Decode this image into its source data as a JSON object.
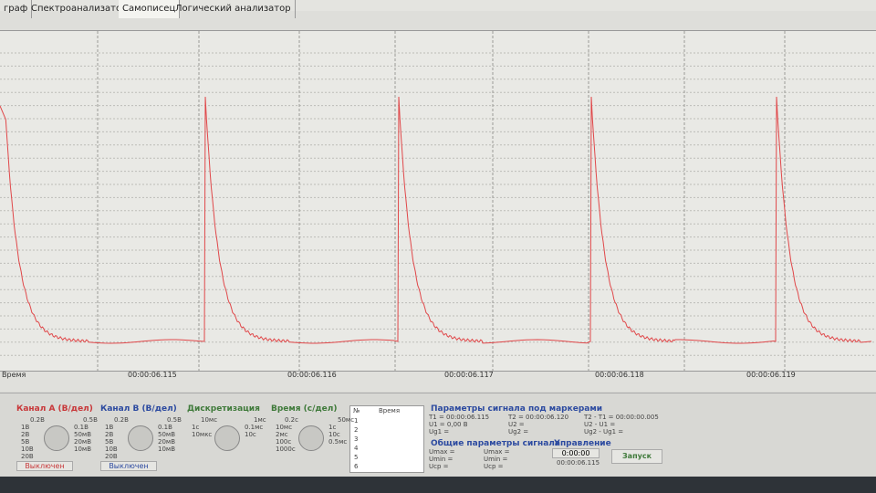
{
  "tabs": [
    "граф",
    "Спектроанализатор",
    "Самописец",
    "Логический анализатор"
  ],
  "time_axis": {
    "label": "Время",
    "ticks": [
      "00:00:06.115",
      "00:00:06.116",
      "00:00:06.117",
      "00:00:06.118",
      "00:00:06.119"
    ]
  },
  "channel_a": {
    "title": "Канал А (В/дел)",
    "scale": [
      "0.2В",
      "0.5В",
      "1В",
      "0.1В",
      "2В",
      "50мВ",
      "5В",
      "20мВ",
      "10В",
      "10мВ",
      "20В"
    ],
    "state": "Выключен"
  },
  "channel_b": {
    "title": "Канал В (В/дел)",
    "scale": [
      "0.2В",
      "0.5В",
      "1В",
      "0.1В",
      "2В",
      "50мВ",
      "5В",
      "20мВ",
      "10В",
      "10мВ",
      "20В"
    ],
    "state": "Выключен"
  },
  "sampling": {
    "title": "Дискретизация",
    "scale": [
      "10мс",
      "1мс",
      "1с",
      "0.1мс",
      "10мкс",
      "10с"
    ]
  },
  "timebase": {
    "title": "Время (с/дел)",
    "scale": [
      "0.2с",
      "50мс",
      "10мс",
      "1с",
      "2мс",
      "10с",
      "100с",
      "0.5мс",
      "1000с"
    ]
  },
  "markers_table": {
    "headers": [
      "№",
      "Время"
    ],
    "rows": [
      "1",
      "2",
      "3",
      "4",
      "5",
      "6"
    ]
  },
  "marker_params": {
    "title": "Параметры сигнала под маркерами",
    "lines": [
      "T1 = 00:00:06.115",
      "T2 = 00:00:06.120",
      "T2 - T1 = 00:00:00.005",
      "U1 = 0,00 В",
      "U2 =",
      "U2 - U1 =",
      "Ug1 =",
      "Ug2 =",
      "Ug2 - Ug1 ="
    ]
  },
  "general_params": {
    "title": "Общие параметры сигнала",
    "lines": [
      "Umax =",
      "Umin =",
      "Ucp =",
      "Umax =",
      "Umin =",
      "Ucp ="
    ]
  },
  "control": {
    "title": "Управление",
    "time": "0:00:00",
    "clock": "00:00:06.115",
    "button": "Запуск"
  }
}
